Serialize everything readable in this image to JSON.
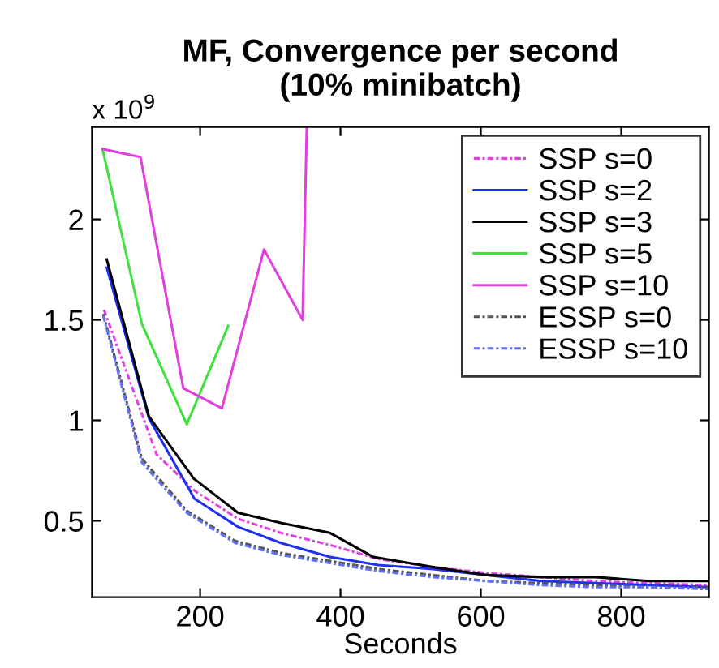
{
  "chart_data": {
    "type": "line",
    "title": "MF, Convergence per second\n(10% minibatch)",
    "xlabel": "Seconds",
    "annotations": [
      "x 10$^{9}$"
    ],
    "xlim": [
      46,
      925
    ],
    "ylim": [
      0.12,
      2.46
    ],
    "xticks": [
      200,
      400,
      600,
      800
    ],
    "yticks": [
      0.5,
      1,
      1.5,
      2
    ],
    "legend": "top right",
    "grid": false,
    "series": [
      {
        "name": "SSP s=0",
        "color": "#e040e0",
        "line_style": "dashed",
        "x": [
          63,
          138,
          192,
          254,
          315,
          385,
          454,
          532,
          609,
          686,
          763,
          840,
          925
        ],
        "values": [
          1.55,
          0.83,
          0.65,
          0.51,
          0.44,
          0.38,
          0.31,
          0.27,
          0.24,
          0.22,
          0.2,
          0.19,
          0.18
        ]
      },
      {
        "name": "SSP s=2",
        "color": "#2030f0",
        "line_style": "solid",
        "x": [
          67,
          127,
          192,
          254,
          315,
          385,
          454,
          532,
          609,
          686,
          763,
          840,
          925
        ],
        "values": [
          1.76,
          1.01,
          0.61,
          0.47,
          0.39,
          0.32,
          0.28,
          0.26,
          0.23,
          0.2,
          0.19,
          0.18,
          0.17
        ]
      },
      {
        "name": "SSP s=3",
        "color": "#000000",
        "line_style": "solid",
        "x": [
          67,
          127,
          191,
          254,
          315,
          385,
          447,
          532,
          609,
          686,
          763,
          840,
          925
        ],
        "values": [
          1.8,
          1.02,
          0.71,
          0.54,
          0.49,
          0.44,
          0.32,
          0.27,
          0.23,
          0.22,
          0.22,
          0.2,
          0.2
        ]
      },
      {
        "name": "SSP s=5",
        "color": "#40e040",
        "line_style": "solid",
        "x": [
          61,
          117,
          181,
          240
        ],
        "values": [
          2.35,
          1.48,
          0.98,
          1.47
        ]
      },
      {
        "name": "SSP s=10",
        "color": "#e040e0",
        "line_style": "solid",
        "x": [
          61,
          115,
          176,
          231,
          291,
          346,
          352
        ],
        "values": [
          2.35,
          2.31,
          1.16,
          1.06,
          1.85,
          1.5,
          2.46
        ]
      },
      {
        "name": "ESSP s=0",
        "color": "#555555",
        "line_style": "dashed",
        "x": [
          62,
          117,
          181,
          250,
          315,
          385,
          454,
          532,
          609,
          686,
          763,
          840,
          925
        ],
        "values": [
          1.53,
          0.81,
          0.55,
          0.4,
          0.34,
          0.3,
          0.26,
          0.23,
          0.2,
          0.19,
          0.18,
          0.17,
          0.17
        ]
      },
      {
        "name": "ESSP s=10",
        "color": "#6070f0",
        "line_style": "dashed",
        "x": [
          62,
          117,
          181,
          250,
          315,
          385,
          454,
          532,
          609,
          686,
          763,
          840,
          925
        ],
        "values": [
          1.52,
          0.79,
          0.54,
          0.39,
          0.33,
          0.29,
          0.25,
          0.22,
          0.2,
          0.18,
          0.17,
          0.17,
          0.16
        ]
      }
    ]
  }
}
